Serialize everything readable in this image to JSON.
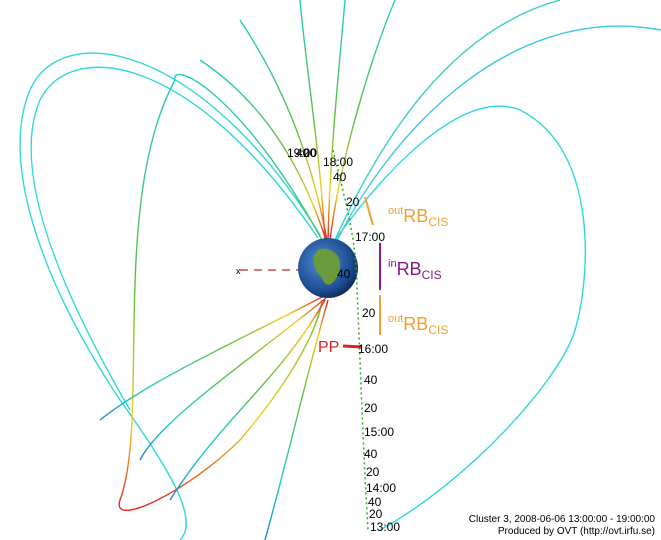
{
  "orbit_labels": [
    "19:00",
    "40",
    "20",
    "18:00",
    "40",
    "20",
    "17:00",
    "40",
    "20",
    "16:00",
    "40",
    "20",
    "15:00",
    "40",
    "20",
    "14:00",
    "40",
    "20",
    "13:00"
  ],
  "axis_label": "x",
  "annotations": [
    {
      "sup": "out",
      "main": "RB",
      "sub": "CIS",
      "color": "#f0a030"
    },
    {
      "sup": "in",
      "main": "RB",
      "sub": "CIS",
      "color": "#8a1a8a"
    },
    {
      "sup": "out",
      "main": "RB",
      "sub": "CIS",
      "color": "#f0a030"
    }
  ],
  "pp_label": "PP",
  "footer": [
    "Cluster 3, 2008-06-06 13:00:00 - 19:00:00",
    "Produced by OVT (http://ovt.irfu.se)"
  ]
}
